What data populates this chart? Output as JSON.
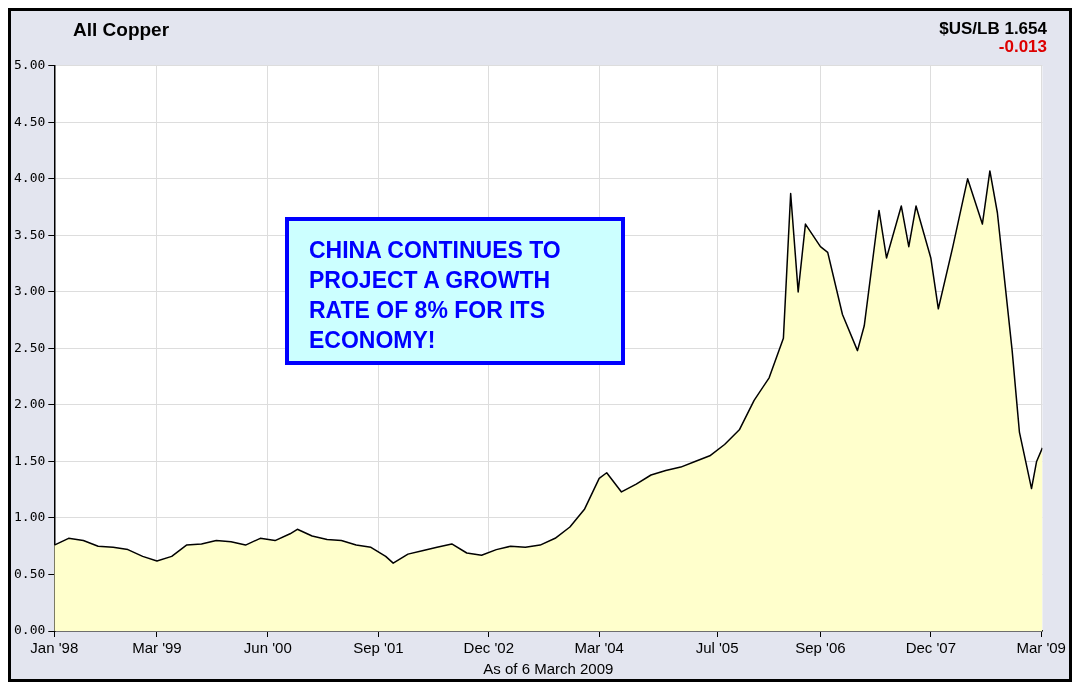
{
  "chart_data": {
    "type": "area",
    "title": "All Copper",
    "xlabel": "As of 6 March 2009",
    "annotations": [
      "$US/LB 1.654",
      "-0.013",
      "CHINA CONTINUES TO PROJECT A GROWTH RATE OF 8% FOR ITS ECONOMY!"
    ],
    "x": [
      "1998-01",
      "1998-03",
      "1998-05",
      "1998-07",
      "1998-09",
      "1998-11",
      "1999-01",
      "1999-03",
      "1999-05",
      "1999-07",
      "1999-09",
      "1999-11",
      "2000-01",
      "2000-03",
      "2000-05",
      "2000-07",
      "2000-09",
      "2000-10",
      "2000-12",
      "2001-02",
      "2001-04",
      "2001-06",
      "2001-08",
      "2001-10",
      "2001-11",
      "2002-01",
      "2002-03",
      "2002-05",
      "2002-07",
      "2002-09",
      "2002-11",
      "2003-01",
      "2003-03",
      "2003-05",
      "2003-07",
      "2003-09",
      "2003-11",
      "2004-01",
      "2004-03",
      "2004-04",
      "2004-06",
      "2004-08",
      "2004-10",
      "2004-12",
      "2005-02",
      "2005-04",
      "2005-06",
      "2005-08",
      "2005-10",
      "2005-12",
      "2006-02",
      "2006-04",
      "2006-05",
      "2006-06",
      "2006-07",
      "2006-09",
      "2006-10",
      "2006-12",
      "2007-02",
      "2007-03",
      "2007-05",
      "2007-06",
      "2007-08",
      "2007-09",
      "2007-10",
      "2007-12",
      "2008-01",
      "2008-03",
      "2008-05",
      "2008-07",
      "2008-08",
      "2008-09",
      "2008-10",
      "2008-11",
      "2008-12",
      "2009-01-01",
      "2009-01-20",
      "2009-02-10",
      "2009-03-06"
    ],
    "series": [
      {
        "color": "#000000",
        "values": [
          0.76,
          0.82,
          0.8,
          0.75,
          0.74,
          0.72,
          0.66,
          0.62,
          0.66,
          0.76,
          0.77,
          0.8,
          0.79,
          0.76,
          0.82,
          0.8,
          0.86,
          0.9,
          0.84,
          0.81,
          0.8,
          0.76,
          0.74,
          0.66,
          0.6,
          0.68,
          0.71,
          0.74,
          0.77,
          0.69,
          0.67,
          0.72,
          0.75,
          0.74,
          0.76,
          0.82,
          0.92,
          1.08,
          1.35,
          1.4,
          1.23,
          1.3,
          1.38,
          1.42,
          1.45,
          1.5,
          1.55,
          1.65,
          1.78,
          2.04,
          2.24,
          2.59,
          3.87,
          3.0,
          3.6,
          3.4,
          3.35,
          2.8,
          2.48,
          2.7,
          3.72,
          3.3,
          3.76,
          3.4,
          3.76,
          3.3,
          2.85,
          3.4,
          4.0,
          3.6,
          4.07,
          3.7,
          3.1,
          2.48,
          1.76,
          1.45,
          1.26,
          1.5,
          1.62
        ]
      }
    ],
    "xlim": [
      "1998-01-01",
      "2009-03-06"
    ],
    "xticks": [
      {
        "value": "1998-01-01",
        "label": "Jan '98"
      },
      {
        "value": "1999-03-01",
        "label": "Mar '99"
      },
      {
        "value": "2000-06-01",
        "label": "Jun '00"
      },
      {
        "value": "2001-09-01",
        "label": "Sep '01"
      },
      {
        "value": "2002-12-01",
        "label": "Dec '02"
      },
      {
        "value": "2004-03-01",
        "label": "Mar '04"
      },
      {
        "value": "2005-07-01",
        "label": "Jul '05"
      },
      {
        "value": "2006-09-01",
        "label": "Sep '06"
      },
      {
        "value": "2007-12-01",
        "label": "Dec '07"
      },
      {
        "value": "2009-03-01",
        "label": "Mar '09"
      }
    ],
    "ylim": [
      0,
      5
    ],
    "yticks": [
      {
        "value": 0,
        "label": "0.00"
      },
      {
        "value": 0.5,
        "label": "0.50"
      },
      {
        "value": 1,
        "label": "1.00"
      },
      {
        "value": 1.5,
        "label": "1.50"
      },
      {
        "value": 2,
        "label": "2.00"
      },
      {
        "value": 2.5,
        "label": "2.50"
      },
      {
        "value": 3,
        "label": "3.00"
      },
      {
        "value": 3.5,
        "label": "3.50"
      },
      {
        "value": 4,
        "label": "4.00"
      },
      {
        "value": 4.5,
        "label": "4.50"
      },
      {
        "value": 5,
        "label": "5.00"
      }
    ],
    "grid": true
  }
}
